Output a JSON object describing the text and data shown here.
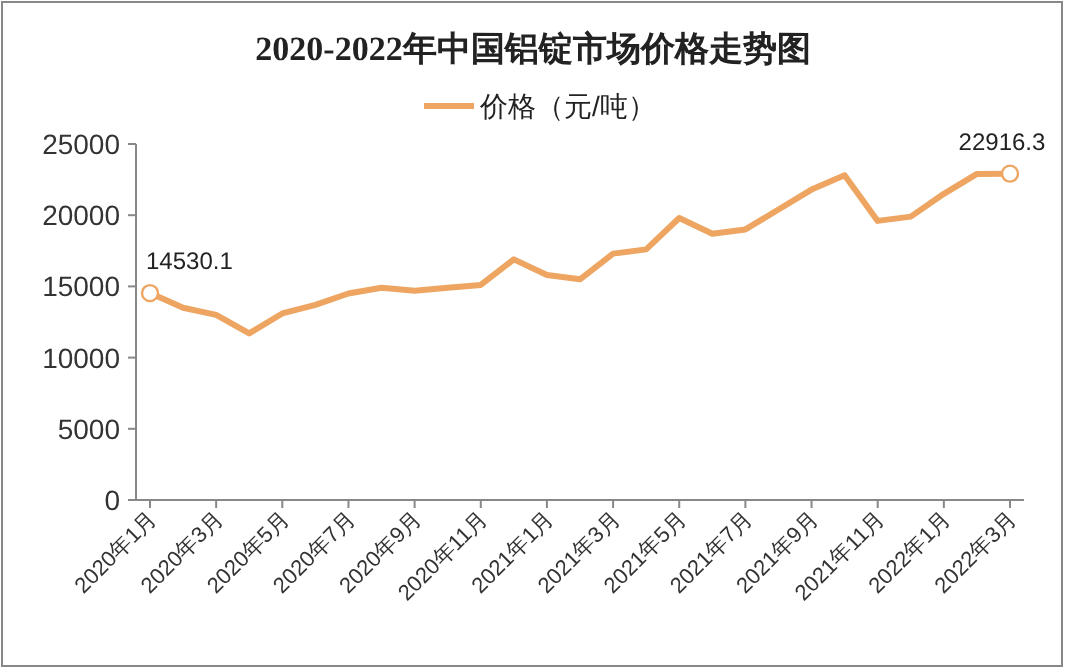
{
  "chart_data": {
    "type": "line",
    "title": "2020-2022年中国铝锭市场价格走势图",
    "categories": [
      "2020年1月",
      null,
      "2020年3月",
      null,
      "2020年5月",
      null,
      "2020年7月",
      null,
      "2020年9月",
      null,
      "2020年11月",
      null,
      "2021年1月",
      null,
      "2021年3月",
      null,
      "2021年5月",
      null,
      "2021年7月",
      null,
      "2021年9月",
      null,
      "2021年11月",
      null,
      "2022年1月",
      null,
      "2022年3月"
    ],
    "series": [
      {
        "name": "价格（元/吨）",
        "color": "#eda561",
        "values": [
          14530.1,
          13500,
          13000,
          11700,
          13100,
          13700,
          14500,
          14900,
          14700,
          14900,
          15100,
          16900,
          15800,
          15500,
          17300,
          17600,
          19800,
          18700,
          19000,
          20400,
          21800,
          22800,
          19600,
          19900,
          21500,
          22900,
          22916.3
        ],
        "value_labels": [
          "14530.1",
          null,
          null,
          null,
          null,
          null,
          null,
          null,
          null,
          null,
          null,
          null,
          null,
          null,
          null,
          null,
          null,
          null,
          null,
          null,
          null,
          null,
          null,
          null,
          null,
          null,
          "22916.3"
        ]
      }
    ],
    "ylim": [
      0,
      25000
    ],
    "yticks": [
      0,
      5000,
      10000,
      15000,
      20000,
      25000
    ],
    "legend": "top",
    "grid": false
  }
}
